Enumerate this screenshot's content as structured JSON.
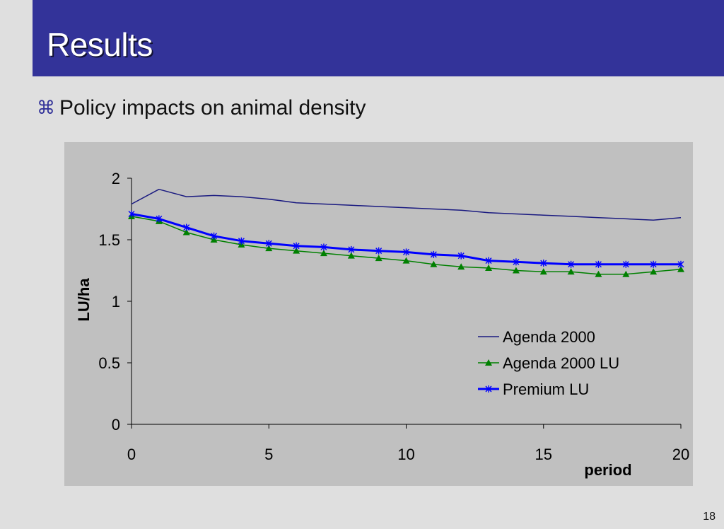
{
  "slide": {
    "title": "Results",
    "bullet_icon": "⌘",
    "bullet_text": "Policy impacts on animal density",
    "page_number": "18",
    "accent_color": "#333399"
  },
  "chart_data": {
    "type": "line",
    "xlabel": "period",
    "ylabel": "LU/ha",
    "xlim": [
      0,
      20
    ],
    "ylim": [
      0,
      2
    ],
    "xticks": [
      0,
      5,
      10,
      15,
      20
    ],
    "yticks": [
      0,
      0.5,
      1,
      1.5,
      2
    ],
    "ytick_labels": [
      "0",
      "0.5",
      "1",
      "1.5",
      "2"
    ],
    "grid": false,
    "legend_position": "right",
    "x": [
      0,
      1,
      2,
      3,
      4,
      5,
      6,
      7,
      8,
      9,
      10,
      11,
      12,
      13,
      14,
      15,
      16,
      17,
      18,
      19,
      20
    ],
    "series": [
      {
        "name": "Agenda 2000",
        "color": "#1a1a80",
        "marker": "none",
        "values": [
          1.79,
          1.91,
          1.85,
          1.86,
          1.85,
          1.83,
          1.8,
          1.79,
          1.78,
          1.77,
          1.76,
          1.75,
          1.74,
          1.72,
          1.71,
          1.7,
          1.69,
          1.68,
          1.67,
          1.66,
          1.68
        ]
      },
      {
        "name": "Agenda 2000 LU",
        "color": "#008000",
        "marker": "triangle",
        "values": [
          1.69,
          1.65,
          1.56,
          1.5,
          1.46,
          1.43,
          1.41,
          1.39,
          1.37,
          1.35,
          1.33,
          1.3,
          1.28,
          1.27,
          1.25,
          1.24,
          1.24,
          1.22,
          1.22,
          1.24,
          1.26
        ]
      },
      {
        "name": "Premium LU",
        "color": "#0000ff",
        "marker": "asterisk",
        "values": [
          1.71,
          1.67,
          1.6,
          1.53,
          1.49,
          1.47,
          1.45,
          1.44,
          1.42,
          1.41,
          1.4,
          1.38,
          1.37,
          1.33,
          1.32,
          1.31,
          1.3,
          1.3,
          1.3,
          1.3,
          1.3
        ]
      }
    ]
  }
}
